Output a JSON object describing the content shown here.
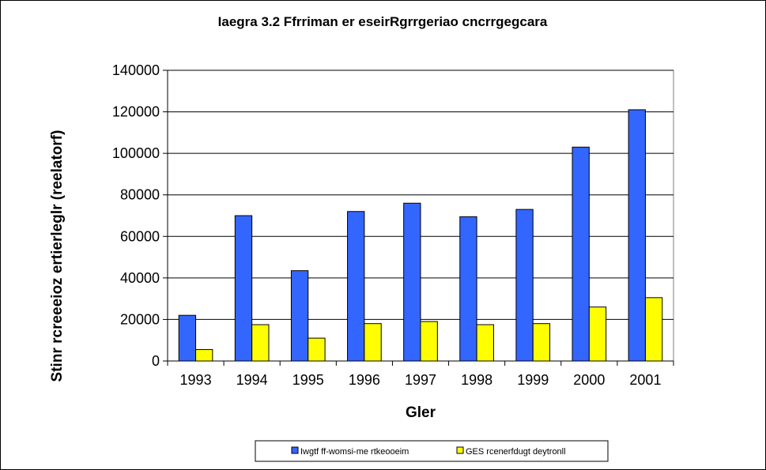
{
  "chart_data": {
    "type": "bar",
    "title": "Iaegra 3.2 Ffrriman er eseirRgrrgeriao cncrrgegcara",
    "xlabel": "Gler",
    "ylabel": "Stinr rcreeeioz ertierleglr (reelatorf)",
    "categories": [
      "1993",
      "1994",
      "1995",
      "1996",
      "1997",
      "1998",
      "1999",
      "2000",
      "2001"
    ],
    "ylim": [
      0,
      140000
    ],
    "yticks": [
      0,
      20000,
      40000,
      60000,
      80000,
      100000,
      120000,
      140000
    ],
    "grid": true,
    "legend_position": "bottom",
    "series": [
      {
        "name": "Iwgtf ff-womsi-me rtkeooeim",
        "color": "#3366FF",
        "values": [
          22000,
          70000,
          43500,
          72000,
          76000,
          69500,
          73000,
          103000,
          121000
        ]
      },
      {
        "name": "GES rcenerfdugt deytronll",
        "color": "#FFFF00",
        "values": [
          5500,
          17500,
          11000,
          18000,
          19000,
          17500,
          18000,
          26000,
          30500
        ]
      }
    ]
  }
}
